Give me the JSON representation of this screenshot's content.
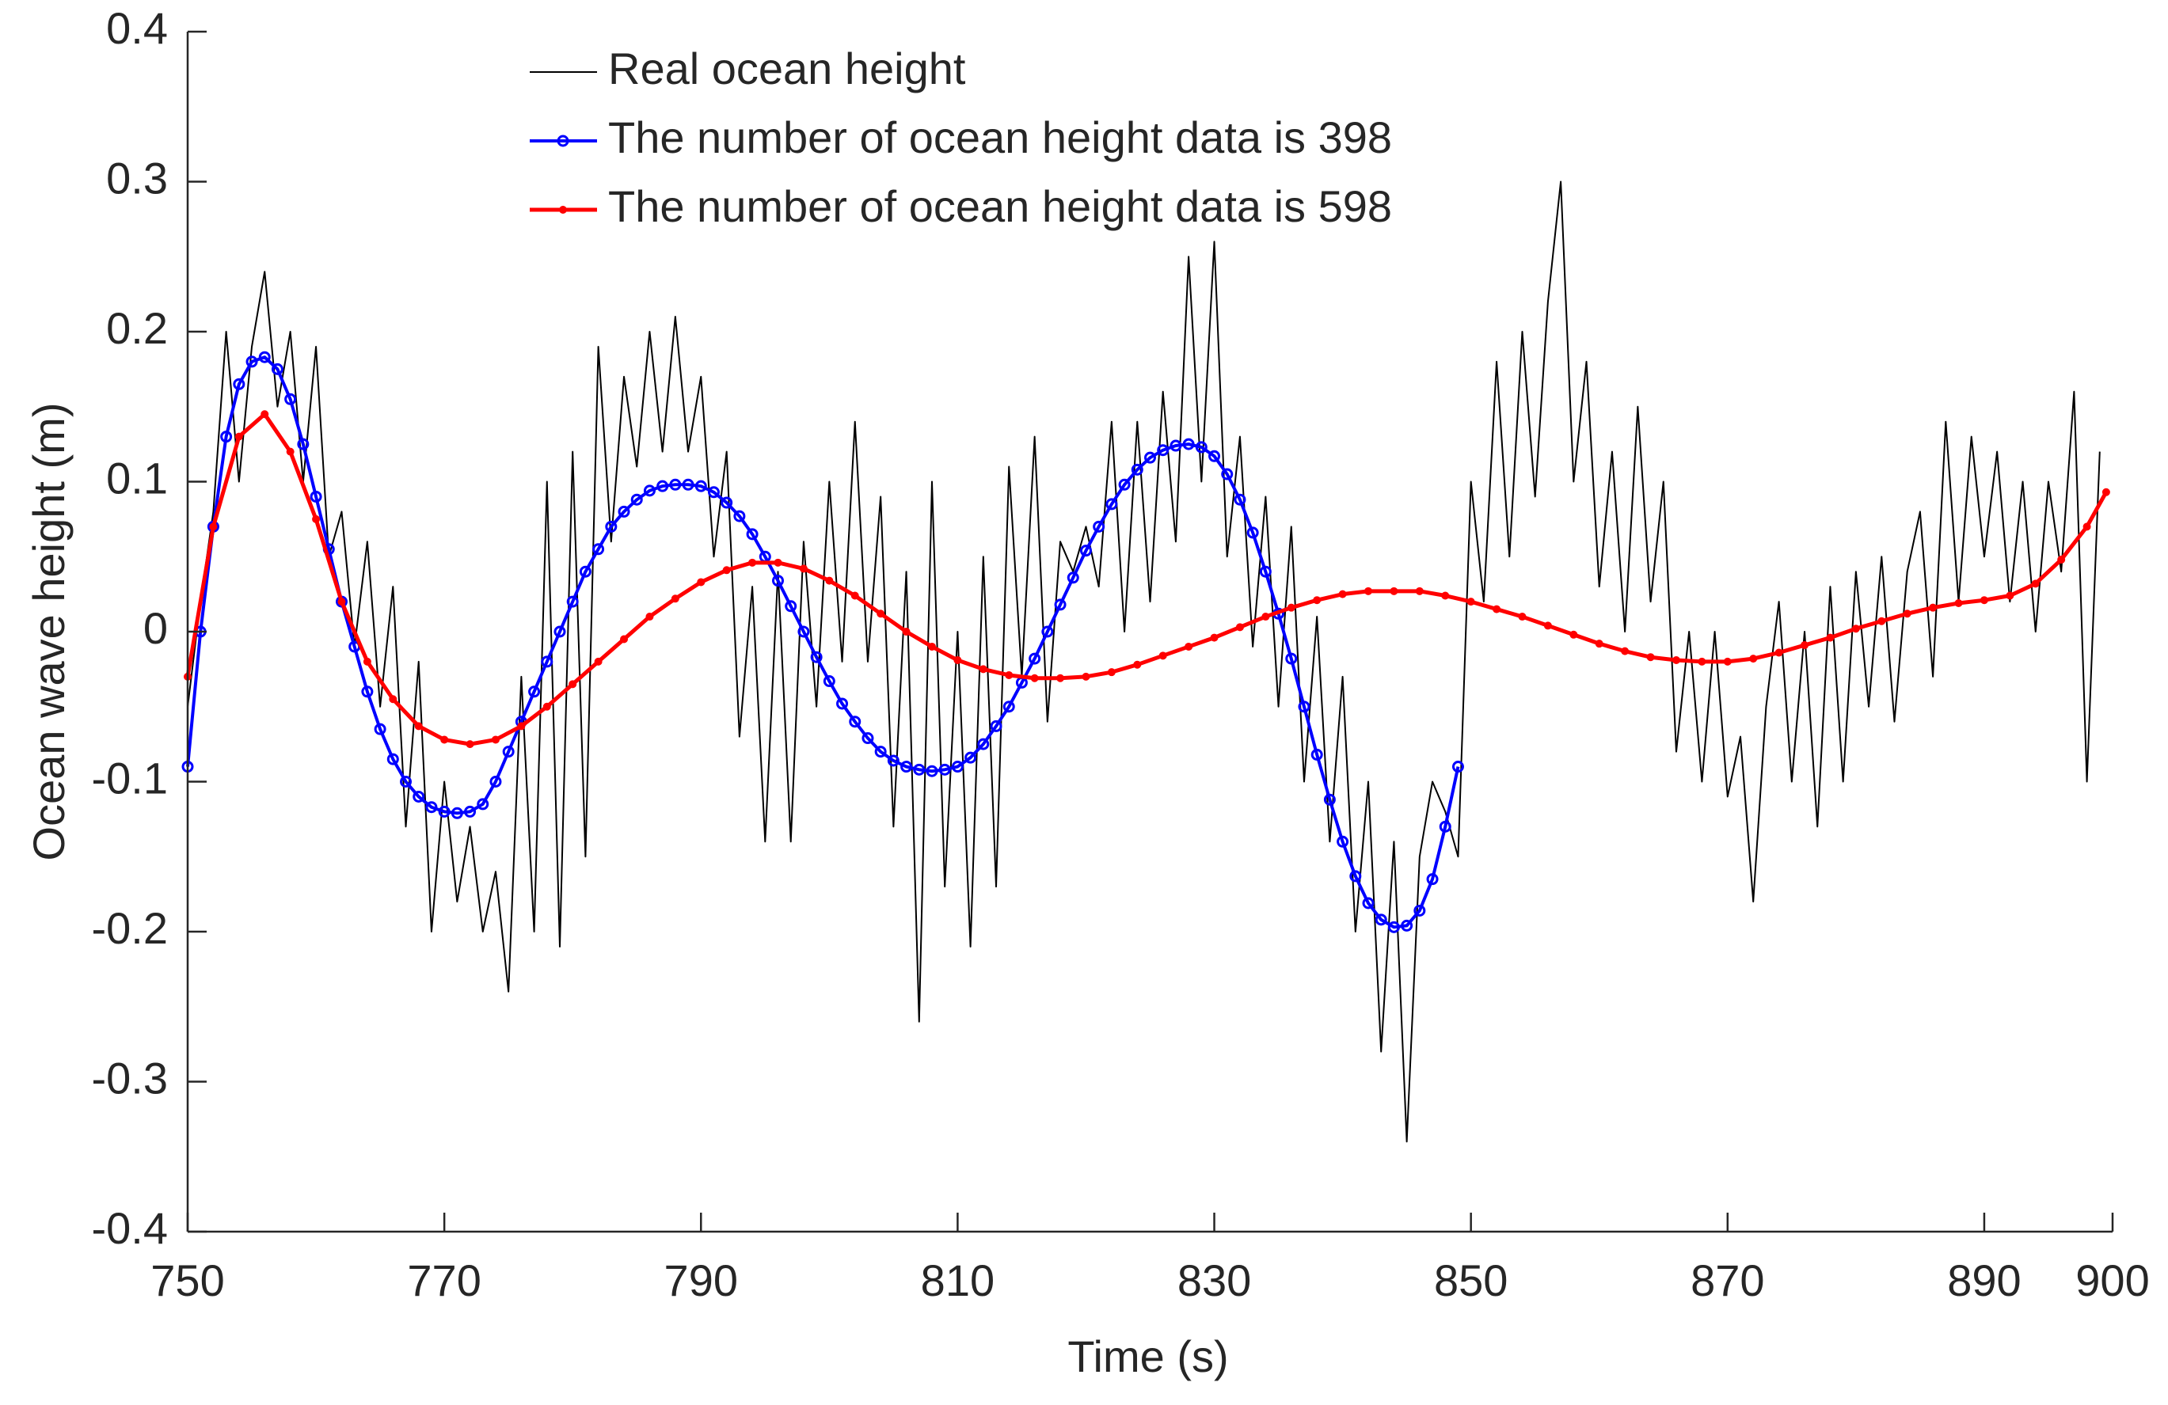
{
  "chart_data": {
    "type": "line",
    "xlabel": "Time (s)",
    "ylabel": "Ocean wave height (m)",
    "xlim": [
      750,
      900
    ],
    "xticks": [
      750,
      770,
      790,
      810,
      830,
      850,
      870,
      890,
      900
    ],
    "ylim": [
      -0.4,
      0.4
    ],
    "yticks": [
      -0.4,
      -0.3,
      -0.2,
      -0.1,
      0,
      0.1,
      0.2,
      0.3,
      0.4
    ],
    "legend": "top-center",
    "series": [
      {
        "name": "Real ocean height",
        "color": "#000000",
        "marker": "none",
        "x": [
          750,
          751,
          752,
          753,
          754,
          755,
          756,
          757,
          758,
          759,
          760,
          761,
          762,
          763,
          764,
          765,
          766,
          767,
          768,
          769,
          770,
          771,
          772,
          773,
          774,
          775,
          776,
          777,
          778,
          779,
          780,
          781,
          782,
          783,
          784,
          785,
          786,
          787,
          788,
          789,
          790,
          791,
          792,
          793,
          794,
          795,
          796,
          797,
          798,
          799,
          800,
          801,
          802,
          803,
          804,
          805,
          806,
          807,
          808,
          809,
          810,
          811,
          812,
          813,
          814,
          815,
          816,
          817,
          818,
          819,
          820,
          821,
          822,
          823,
          824,
          825,
          826,
          827,
          828,
          829,
          830,
          831,
          832,
          833,
          834,
          835,
          836,
          837,
          838,
          839,
          840,
          841,
          842,
          843,
          844,
          845,
          846,
          847,
          848,
          849,
          850,
          851,
          852,
          853,
          854,
          855,
          856,
          857,
          858,
          859,
          860,
          861,
          862,
          863,
          864,
          865,
          866,
          867,
          868,
          869,
          870,
          871,
          872,
          873,
          874,
          875,
          876,
          877,
          878,
          879,
          880,
          881,
          882,
          883,
          884,
          885,
          886,
          887,
          888,
          889,
          890,
          891,
          892,
          893,
          894,
          895,
          896,
          897,
          898,
          899
        ],
        "values": [
          -0.05,
          0.02,
          0.08,
          0.2,
          0.1,
          0.19,
          0.24,
          0.15,
          0.2,
          0.1,
          0.19,
          0.05,
          0.08,
          -0.01,
          0.06,
          -0.05,
          0.03,
          -0.13,
          -0.02,
          -0.2,
          -0.1,
          -0.18,
          -0.13,
          -0.2,
          -0.16,
          -0.24,
          -0.03,
          -0.2,
          0.1,
          -0.21,
          0.12,
          -0.15,
          0.19,
          0.06,
          0.17,
          0.11,
          0.2,
          0.12,
          0.21,
          0.12,
          0.17,
          0.05,
          0.12,
          -0.07,
          0.03,
          -0.14,
          0.04,
          -0.14,
          0.06,
          -0.05,
          0.1,
          -0.02,
          0.14,
          -0.02,
          0.09,
          -0.13,
          0.04,
          -0.26,
          0.1,
          -0.17,
          0.0,
          -0.21,
          0.05,
          -0.17,
          0.11,
          -0.03,
          0.13,
          -0.06,
          0.06,
          0.04,
          0.07,
          0.03,
          0.14,
          0.0,
          0.14,
          0.02,
          0.16,
          0.06,
          0.25,
          0.1,
          0.26,
          0.05,
          0.13,
          -0.01,
          0.09,
          -0.05,
          0.07,
          -0.1,
          0.01,
          -0.14,
          -0.03,
          -0.2,
          -0.1,
          -0.28,
          -0.14,
          -0.34,
          -0.15,
          -0.1,
          -0.12,
          -0.15,
          0.1,
          0.02,
          0.18,
          0.05,
          0.2,
          0.09,
          0.22,
          0.3,
          0.1,
          0.18,
          0.03,
          0.12,
          0.0,
          0.15,
          0.02,
          0.1,
          -0.08,
          0.0,
          -0.1,
          0.0,
          -0.11,
          -0.07,
          -0.18,
          -0.05,
          0.02,
          -0.1,
          0.0,
          -0.13,
          0.03,
          -0.1,
          0.04,
          -0.05,
          0.05,
          -0.06,
          0.04,
          0.08,
          -0.03,
          0.14,
          0.02,
          0.13,
          0.05,
          0.12,
          0.02,
          0.1,
          0.0,
          0.1,
          0.04,
          0.16,
          -0.1,
          0.12
        ]
      },
      {
        "name": "The number of ocean height data is 398",
        "color": "#0000ff",
        "marker": "circle",
        "x": [
          750,
          751,
          752,
          753,
          754,
          755,
          756,
          757,
          758,
          759,
          760,
          761,
          762,
          763,
          764,
          765,
          766,
          767,
          768,
          769,
          770,
          771,
          772,
          773,
          774,
          775,
          776,
          777,
          778,
          779,
          780,
          781,
          782,
          783,
          784,
          785,
          786,
          787,
          788,
          789,
          790,
          791,
          792,
          793,
          794,
          795,
          796,
          797,
          798,
          799,
          800,
          801,
          802,
          803,
          804,
          805,
          806,
          807,
          808,
          809,
          810,
          811,
          812,
          813,
          814,
          815,
          816,
          817,
          818,
          819,
          820,
          821,
          822,
          823,
          824,
          825,
          826,
          827,
          828,
          829,
          830,
          831,
          832,
          833,
          834,
          835,
          836,
          837,
          838,
          839,
          840,
          841,
          842,
          843,
          844,
          845,
          846,
          847,
          848,
          849
        ],
        "values": [
          -0.09,
          0.0,
          0.07,
          0.13,
          0.165,
          0.18,
          0.183,
          0.175,
          0.155,
          0.125,
          0.09,
          0.055,
          0.02,
          -0.01,
          -0.04,
          -0.065,
          -0.085,
          -0.1,
          -0.11,
          -0.117,
          -0.12,
          -0.121,
          -0.12,
          -0.115,
          -0.1,
          -0.08,
          -0.06,
          -0.04,
          -0.02,
          0.0,
          0.02,
          0.04,
          0.055,
          0.07,
          0.08,
          0.088,
          0.094,
          0.097,
          0.098,
          0.098,
          0.097,
          0.093,
          0.086,
          0.077,
          0.065,
          0.05,
          0.034,
          0.017,
          0.0,
          -0.017,
          -0.033,
          -0.048,
          -0.06,
          -0.071,
          -0.08,
          -0.086,
          -0.09,
          -0.092,
          -0.093,
          -0.092,
          -0.09,
          -0.084,
          -0.075,
          -0.063,
          -0.05,
          -0.034,
          -0.018,
          0.0,
          0.018,
          0.036,
          0.054,
          0.07,
          0.085,
          0.098,
          0.108,
          0.116,
          0.121,
          0.124,
          0.125,
          0.123,
          0.117,
          0.105,
          0.088,
          0.066,
          0.04,
          0.012,
          -0.018,
          -0.05,
          -0.082,
          -0.112,
          -0.14,
          -0.163,
          -0.181,
          -0.192,
          -0.197,
          -0.196,
          -0.186,
          -0.165,
          -0.13,
          -0.09
        ]
      },
      {
        "name": "The number of ocean height data is 598",
        "color": "#ff0000",
        "marker": "dot",
        "x": [
          750,
          752,
          754,
          756,
          758,
          760,
          762,
          764,
          766,
          768,
          770,
          772,
          774,
          776,
          778,
          780,
          782,
          784,
          786,
          788,
          790,
          792,
          794,
          796,
          798,
          800,
          802,
          804,
          806,
          808,
          810,
          812,
          814,
          816,
          818,
          820,
          822,
          824,
          826,
          828,
          830,
          832,
          834,
          836,
          838,
          840,
          842,
          844,
          846,
          848,
          850,
          852,
          854,
          856,
          858,
          860,
          862,
          864,
          866,
          868,
          870,
          872,
          874,
          876,
          878,
          880,
          882,
          884,
          886,
          888,
          890,
          892,
          894,
          896,
          898,
          899.5
        ],
        "values": [
          -0.03,
          0.07,
          0.13,
          0.145,
          0.12,
          0.075,
          0.02,
          -0.02,
          -0.045,
          -0.063,
          -0.072,
          -0.075,
          -0.072,
          -0.063,
          -0.05,
          -0.035,
          -0.02,
          -0.005,
          0.01,
          0.022,
          0.033,
          0.041,
          0.046,
          0.046,
          0.042,
          0.034,
          0.024,
          0.012,
          0.0,
          -0.01,
          -0.019,
          -0.025,
          -0.029,
          -0.031,
          -0.031,
          -0.03,
          -0.027,
          -0.022,
          -0.016,
          -0.01,
          -0.004,
          0.003,
          0.01,
          0.016,
          0.021,
          0.025,
          0.027,
          0.027,
          0.027,
          0.024,
          0.02,
          0.015,
          0.01,
          0.004,
          -0.002,
          -0.008,
          -0.013,
          -0.017,
          -0.019,
          -0.02,
          -0.02,
          -0.018,
          -0.014,
          -0.009,
          -0.004,
          0.002,
          0.007,
          0.012,
          0.016,
          0.019,
          0.021,
          0.024,
          0.032,
          0.048,
          0.07,
          0.093
        ]
      }
    ]
  }
}
